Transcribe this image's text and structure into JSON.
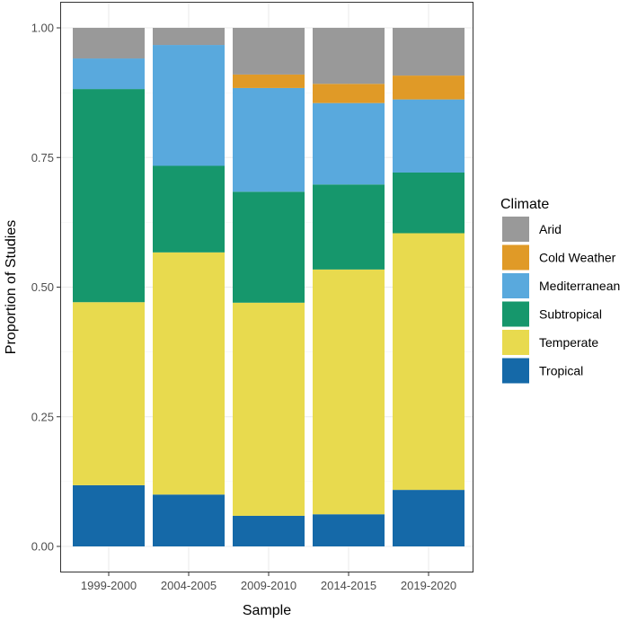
{
  "chart_data": {
    "type": "bar",
    "stacked": true,
    "xlabel": "Sample",
    "ylabel": "Proportion of Studies",
    "ylim": [
      0,
      1
    ],
    "yticks": [
      0.0,
      0.25,
      0.5,
      0.75,
      1.0
    ],
    "ytick_labels": [
      "0.00",
      "0.25",
      "0.50",
      "0.75",
      "1.00"
    ],
    "categories": [
      "1999-2000",
      "2004-2005",
      "2009-2010",
      "2014-2015",
      "2019-2020"
    ],
    "grid": true,
    "legend_position": "right",
    "legend_title": "Climate",
    "series": [
      {
        "name": "Tropical",
        "color": "#1569A8",
        "values": [
          0.118,
          0.1,
          0.059,
          0.062,
          0.109
        ]
      },
      {
        "name": "Temperate",
        "color": "#E8DA4E",
        "values": [
          0.353,
          0.467,
          0.411,
          0.472,
          0.495
        ]
      },
      {
        "name": "Subtropical",
        "color": "#16976C",
        "values": [
          0.411,
          0.167,
          0.214,
          0.164,
          0.117
        ]
      },
      {
        "name": "Mediterranean",
        "color": "#59A9DD",
        "values": [
          0.059,
          0.233,
          0.2,
          0.157,
          0.141
        ]
      },
      {
        "name": "Cold Weather",
        "color": "#E09A27",
        "values": [
          0.0,
          0.0,
          0.026,
          0.037,
          0.046
        ]
      },
      {
        "name": "Arid",
        "color": "#999999",
        "values": [
          0.059,
          0.033,
          0.09,
          0.108,
          0.092
        ]
      }
    ]
  }
}
